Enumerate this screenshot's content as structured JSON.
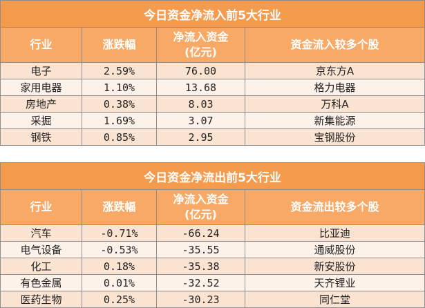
{
  "inflow": {
    "title": "今日资金净流入前5大行业",
    "headers": {
      "industry": "行业",
      "change": "涨跌幅",
      "net": "净流入资金\n(亿元)",
      "stocks": "资金流入较多个股"
    },
    "rows": [
      {
        "industry": "电子",
        "change": "2.59%",
        "net": "76.00",
        "stock": "京东方A"
      },
      {
        "industry": "家用电器",
        "change": "1.10%",
        "net": "13.68",
        "stock": "格力电器"
      },
      {
        "industry": "房地产",
        "change": "0.38%",
        "net": "8.03",
        "stock": "万科A"
      },
      {
        "industry": "采掘",
        "change": "1.69%",
        "net": "3.07",
        "stock": "新集能源"
      },
      {
        "industry": "钢铁",
        "change": "0.85%",
        "net": "2.95",
        "stock": "宝钢股份"
      }
    ]
  },
  "outflow": {
    "title": "今日资金净流出前5大行业",
    "headers": {
      "industry": "行业",
      "change": "涨跌幅",
      "net": "净流入资金\n(亿元)",
      "stocks": "资金流出较多个股"
    },
    "rows": [
      {
        "industry": "汽车",
        "change": "-0.71%",
        "net": "-66.24",
        "stock": "比亚迪"
      },
      {
        "industry": "电气设备",
        "change": "-0.53%",
        "net": "-35.55",
        "stock": "通威股份"
      },
      {
        "industry": "化工",
        "change": "0.18%",
        "net": "-35.38",
        "stock": "新安股份"
      },
      {
        "industry": "有色金属",
        "change": "0.01%",
        "net": "-32.52",
        "stock": "天齐锂业"
      },
      {
        "industry": "医药生物",
        "change": "0.25%",
        "net": "-30.23",
        "stock": "同仁堂"
      }
    ]
  },
  "colors": {
    "title_bg": "#f59b4e",
    "header_bg": "#f8a966",
    "row_odd": "#fbe3d1",
    "row_even": "#fdf2ea"
  }
}
